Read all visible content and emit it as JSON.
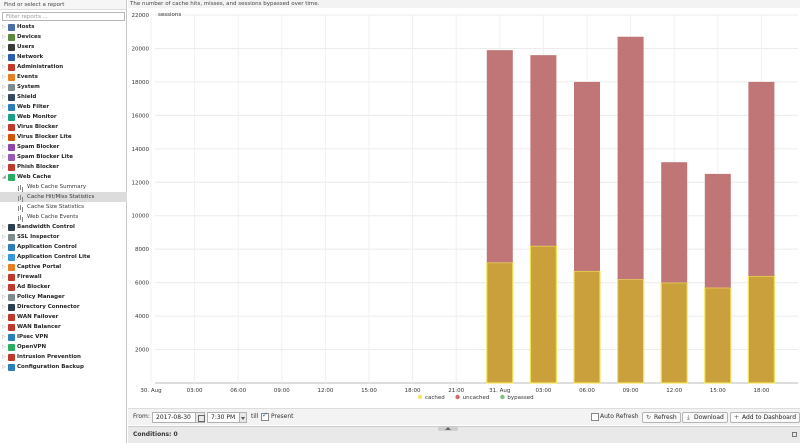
{
  "sidebar": {
    "title": "Find or select a report",
    "filter_placeholder": "Filter reports ...",
    "items": [
      {
        "label": "Hosts",
        "icon": "hosts-icon",
        "color": "#4a6fa5"
      },
      {
        "label": "Devices",
        "icon": "devices-icon",
        "color": "#5b8a3c"
      },
      {
        "label": "Users",
        "icon": "users-icon",
        "color": "#3a3a3a"
      },
      {
        "label": "Network",
        "icon": "network-icon",
        "color": "#2a5db0"
      },
      {
        "label": "Administration",
        "icon": "administration-icon",
        "color": "#c0392b"
      },
      {
        "label": "Events",
        "icon": "events-icon",
        "color": "#e67e22"
      },
      {
        "label": "System",
        "icon": "system-icon",
        "color": "#7f8c8d"
      },
      {
        "label": "Shield",
        "icon": "shield-icon",
        "color": "#34495e"
      },
      {
        "label": "Web Filter",
        "icon": "web-filter-icon",
        "color": "#2980b9"
      },
      {
        "label": "Web Monitor",
        "icon": "web-monitor-icon",
        "color": "#16a085"
      },
      {
        "label": "Virus Blocker",
        "icon": "virus-blocker-icon",
        "color": "#c0392b"
      },
      {
        "label": "Virus Blocker Lite",
        "icon": "virus-blocker-lite-icon",
        "color": "#d35400"
      },
      {
        "label": "Spam Blocker",
        "icon": "spam-blocker-icon",
        "color": "#8e44ad"
      },
      {
        "label": "Spam Blocker Lite",
        "icon": "spam-blocker-lite-icon",
        "color": "#9b59b6"
      },
      {
        "label": "Phish Blocker",
        "icon": "phish-blocker-icon",
        "color": "#c0392b"
      },
      {
        "label": "Web Cache",
        "icon": "web-cache-icon",
        "color": "#27ae60",
        "expanded": true
      },
      {
        "label": "Web Cache Summary",
        "child": true
      },
      {
        "label": "Cache Hit/Miss Statistics",
        "child": true,
        "selected": true
      },
      {
        "label": "Cache Size Statistics",
        "child": true
      },
      {
        "label": "Web Cache Events",
        "child": true
      },
      {
        "label": "Bandwidth Control",
        "icon": "bandwidth-control-icon",
        "color": "#2c3e50"
      },
      {
        "label": "SSL Inspector",
        "icon": "ssl-inspector-icon",
        "color": "#7f8c8d"
      },
      {
        "label": "Application Control",
        "icon": "application-control-icon",
        "color": "#2980b9"
      },
      {
        "label": "Application Control Lite",
        "icon": "application-control-lite-icon",
        "color": "#3498db"
      },
      {
        "label": "Captive Portal",
        "icon": "captive-portal-icon",
        "color": "#e67e22"
      },
      {
        "label": "Firewall",
        "icon": "firewall-icon",
        "color": "#c0392b"
      },
      {
        "label": "Ad Blocker",
        "icon": "ad-blocker-icon",
        "color": "#c0392b"
      },
      {
        "label": "Policy Manager",
        "icon": "policy-manager-icon",
        "color": "#7f8c8d"
      },
      {
        "label": "Directory Connector",
        "icon": "directory-connector-icon",
        "color": "#2c3e50"
      },
      {
        "label": "WAN Failover",
        "icon": "wan-failover-icon",
        "color": "#c0392b"
      },
      {
        "label": "WAN Balancer",
        "icon": "wan-balancer-icon",
        "color": "#c0392b"
      },
      {
        "label": "IPsec VPN",
        "icon": "ipsec-vpn-icon",
        "color": "#2980b9"
      },
      {
        "label": "OpenVPN",
        "icon": "openvpn-icon",
        "color": "#27ae60"
      },
      {
        "label": "Intrusion Prevention",
        "icon": "intrusion-prevention-icon",
        "color": "#c0392b"
      },
      {
        "label": "Configuration Backup",
        "icon": "configuration-backup-icon",
        "color": "#2980b9"
      }
    ]
  },
  "main": {
    "description": "The number of cache hits, misses, and sessions bypassed over time."
  },
  "chart_data": {
    "type": "bar",
    "stacked": true,
    "ylabel": "sessions",
    "ylim": [
      0,
      22000
    ],
    "yticks": [
      2000,
      4000,
      6000,
      8000,
      10000,
      12000,
      14000,
      16000,
      18000,
      20000,
      22000
    ],
    "x_ticks": [
      "30. Aug",
      "03:00",
      "06:00",
      "09:00",
      "12:00",
      "15:00",
      "18:00",
      "21:00",
      "31. Aug",
      "03:00",
      "06:00",
      "09:00",
      "12:00",
      "15:00",
      "18:00"
    ],
    "bar_ticks": [
      8,
      9,
      10,
      11,
      12,
      13,
      14
    ],
    "series": [
      {
        "name": "cached",
        "color": "#c9a03b",
        "legend_color": "#f4e36b",
        "values": [
          7200,
          8200,
          6700,
          6200,
          6000,
          5700,
          6400
        ]
      },
      {
        "name": "uncached",
        "color": "#c07677",
        "legend_color": "#d06a6a",
        "values": [
          12700,
          11400,
          11300,
          14500,
          7200,
          6800,
          11600
        ]
      },
      {
        "name": "bypassed",
        "color": "#8fbf7f",
        "legend_color": "#7fbf7f",
        "values": [
          0,
          0,
          0,
          0,
          0,
          0,
          0
        ]
      }
    ],
    "grid": true,
    "legend": "bottom"
  },
  "toolbar": {
    "from_label": "From:",
    "date_value": "2017-08-30",
    "time_value": "7:30 PM",
    "till_label": "till",
    "present_label": "Present",
    "present_checked": true,
    "auto_refresh_label": "Auto Refresh",
    "refresh_label": "Refresh",
    "download_label": "Download",
    "add_dashboard_label": "Add to Dashboard"
  },
  "conditions": {
    "label": "Conditions: 0"
  }
}
